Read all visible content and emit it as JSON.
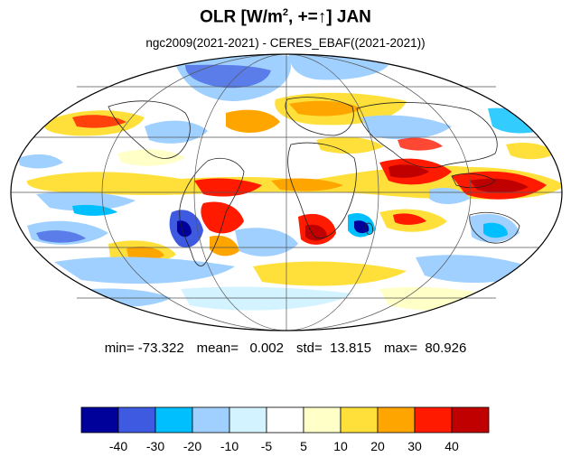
{
  "title": {
    "main": "OLR [W/m",
    "superscript": "2",
    "suffix": ", +=↑] JAN"
  },
  "subtitle": "ngc2009(2021-2021) - CERES_EBAF((2021-2021))",
  "stats": {
    "min": "min= -73.322",
    "mean": "mean=   0.002",
    "std": "std=  13.815",
    "max": "max=  80.926"
  },
  "colorbar": {
    "colors": [
      "#00009b",
      "#3d5ae0",
      "#00bfff",
      "#9fd0ff",
      "#d2f3ff",
      "#ffffff",
      "#ffffc8",
      "#ffe03a",
      "#ffa500",
      "#ff1a00",
      "#c00000"
    ],
    "labels": [
      "-40",
      "-30",
      "-20",
      "-10",
      "-5",
      "5",
      "10",
      "20",
      "30",
      "40"
    ]
  },
  "map_colors": {
    "ocean_base": "#ffffff",
    "grid": "#555555",
    "coast": "#222222"
  }
}
